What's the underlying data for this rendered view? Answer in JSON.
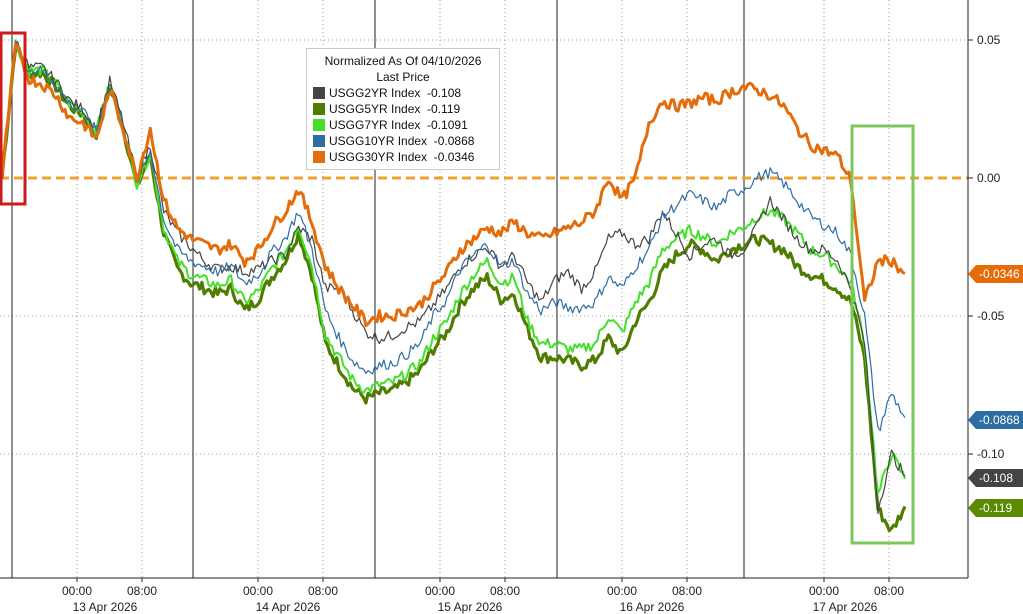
{
  "chart_data": {
    "type": "line",
    "ylim": [
      -0.135,
      0.062
    ],
    "yticks": [
      0.05,
      0.0,
      -0.05,
      -0.1
    ],
    "ytick_labels": [
      "0.05",
      "0.00",
      "-0.05",
      "-0.10"
    ],
    "x_tick_labels": [
      "00:00",
      "08:00",
      "00:00",
      "08:00",
      "00:00",
      "08:00",
      "00:00",
      "08:00",
      "00:00",
      "08:00"
    ],
    "date_labels": [
      "13 Apr 2026",
      "14 Apr 2026",
      "15 Apr 2026",
      "16 Apr 2026",
      "17 Apr 2026"
    ],
    "zero_line_value": 0.0,
    "grid": true,
    "legend": {
      "position": "top-center",
      "title_line1": "Normalized As Of 04/10/2026",
      "title_line2": "Last Price",
      "entries": [
        {
          "name": "USGG2YR Index",
          "value": "-0.108"
        },
        {
          "name": "USGG5YR Index",
          "value": "-0.119"
        },
        {
          "name": "USGG7YR Index",
          "value": "-0.1091"
        },
        {
          "name": "USGG10YR Index",
          "value": "-0.0868"
        },
        {
          "name": "USGG30YR Index",
          "value": "-0.0346"
        }
      ]
    },
    "value_tags": [
      {
        "label": "-0.0346",
        "value": -0.0346,
        "color": "#e46c0a"
      },
      {
        "label": "-0.0868",
        "value": -0.0868,
        "color": "#2e6ca4"
      },
      {
        "label": "-0.108",
        "value": -0.108,
        "color": "#444444"
      },
      {
        "label": "-0.119",
        "value": -0.119,
        "color": "#5a8a00"
      }
    ],
    "series": [
      {
        "name": "USGG2YR Index",
        "color": "#444444",
        "values": [
          0.0,
          0.05,
          0.04,
          0.04,
          0.035,
          0.028,
          0.025,
          0.018,
          0.035,
          0.02,
          0.0,
          0.012,
          -0.012,
          -0.02,
          -0.025,
          -0.03,
          -0.033,
          -0.032,
          -0.034,
          -0.033,
          -0.03,
          -0.028,
          -0.018,
          -0.022,
          -0.04,
          -0.04,
          -0.048,
          -0.056,
          -0.058,
          -0.057,
          -0.054,
          -0.052,
          -0.046,
          -0.04,
          -0.032,
          -0.028,
          -0.025,
          -0.032,
          -0.028,
          -0.038,
          -0.045,
          -0.037,
          -0.034,
          -0.04,
          -0.034,
          -0.022,
          -0.02,
          -0.024,
          -0.022,
          -0.012,
          -0.02,
          -0.028,
          -0.024,
          -0.022,
          -0.028,
          -0.026,
          -0.018,
          -0.008,
          -0.015,
          -0.022,
          -0.026,
          -0.026,
          -0.03,
          -0.04,
          -0.06,
          -0.12,
          -0.1,
          -0.108
        ]
      },
      {
        "name": "USGG5YR Index",
        "color": "#4f7d00",
        "values": [
          0.0,
          0.048,
          0.038,
          0.038,
          0.033,
          0.026,
          0.023,
          0.016,
          0.033,
          0.018,
          -0.003,
          0.008,
          -0.02,
          -0.033,
          -0.038,
          -0.04,
          -0.042,
          -0.04,
          -0.048,
          -0.044,
          -0.036,
          -0.03,
          -0.02,
          -0.035,
          -0.06,
          -0.068,
          -0.076,
          -0.08,
          -0.078,
          -0.077,
          -0.074,
          -0.07,
          -0.062,
          -0.056,
          -0.046,
          -0.04,
          -0.036,
          -0.044,
          -0.042,
          -0.055,
          -0.065,
          -0.065,
          -0.066,
          -0.068,
          -0.066,
          -0.058,
          -0.064,
          -0.052,
          -0.045,
          -0.034,
          -0.028,
          -0.024,
          -0.026,
          -0.03,
          -0.026,
          -0.024,
          -0.022,
          -0.024,
          -0.026,
          -0.032,
          -0.035,
          -0.037,
          -0.04,
          -0.045,
          -0.065,
          -0.12,
          -0.128,
          -0.119
        ]
      },
      {
        "name": "USGG7YR Index",
        "color": "#44e02a",
        "values": [
          0.0,
          0.049,
          0.039,
          0.039,
          0.034,
          0.027,
          0.024,
          0.017,
          0.034,
          0.019,
          -0.002,
          0.009,
          -0.018,
          -0.03,
          -0.035,
          -0.037,
          -0.039,
          -0.037,
          -0.045,
          -0.041,
          -0.033,
          -0.027,
          -0.017,
          -0.032,
          -0.057,
          -0.065,
          -0.073,
          -0.077,
          -0.075,
          -0.074,
          -0.071,
          -0.067,
          -0.058,
          -0.052,
          -0.042,
          -0.035,
          -0.03,
          -0.038,
          -0.036,
          -0.052,
          -0.06,
          -0.06,
          -0.062,
          -0.062,
          -0.06,
          -0.05,
          -0.056,
          -0.045,
          -0.038,
          -0.026,
          -0.022,
          -0.019,
          -0.021,
          -0.024,
          -0.02,
          -0.018,
          -0.014,
          -0.012,
          -0.015,
          -0.02,
          -0.026,
          -0.028,
          -0.032,
          -0.038,
          -0.06,
          -0.115,
          -0.1,
          -0.109
        ]
      },
      {
        "name": "USGG10YR Index",
        "color": "#2e6ca4",
        "values": [
          0.0,
          0.049,
          0.039,
          0.039,
          0.034,
          0.027,
          0.024,
          0.017,
          0.034,
          0.019,
          -0.002,
          0.01,
          -0.015,
          -0.026,
          -0.03,
          -0.032,
          -0.034,
          -0.032,
          -0.038,
          -0.035,
          -0.027,
          -0.022,
          -0.012,
          -0.026,
          -0.048,
          -0.058,
          -0.066,
          -0.07,
          -0.068,
          -0.067,
          -0.064,
          -0.06,
          -0.05,
          -0.044,
          -0.033,
          -0.028,
          -0.024,
          -0.032,
          -0.03,
          -0.042,
          -0.048,
          -0.045,
          -0.047,
          -0.047,
          -0.045,
          -0.036,
          -0.04,
          -0.032,
          -0.026,
          -0.014,
          -0.01,
          -0.006,
          -0.008,
          -0.011,
          -0.006,
          -0.004,
          0.0,
          0.002,
          -0.002,
          -0.008,
          -0.014,
          -0.017,
          -0.02,
          -0.028,
          -0.05,
          -0.092,
          -0.078,
          -0.0868
        ]
      },
      {
        "name": "USGG30YR Index",
        "color": "#e46c0a",
        "values": [
          0.0,
          0.048,
          0.036,
          0.034,
          0.03,
          0.022,
          0.02,
          0.014,
          0.032,
          0.018,
          0.0,
          0.018,
          -0.008,
          -0.018,
          -0.022,
          -0.024,
          -0.026,
          -0.024,
          -0.03,
          -0.026,
          -0.018,
          -0.012,
          -0.004,
          -0.016,
          -0.032,
          -0.04,
          -0.046,
          -0.052,
          -0.05,
          -0.05,
          -0.048,
          -0.046,
          -0.04,
          -0.034,
          -0.026,
          -0.022,
          -0.018,
          -0.02,
          -0.016,
          -0.02,
          -0.022,
          -0.02,
          -0.018,
          -0.016,
          -0.012,
          0.0,
          -0.008,
          0.0,
          0.02,
          0.028,
          0.026,
          0.027,
          0.029,
          0.028,
          0.031,
          0.033,
          0.032,
          0.03,
          0.026,
          0.018,
          0.012,
          0.01,
          0.008,
          -0.001,
          -0.045,
          -0.03,
          -0.03,
          -0.0346
        ]
      }
    ]
  },
  "highlights": [
    {
      "name": "highlight-box-start",
      "color": "#cc1a1a"
    },
    {
      "name": "highlight-box-end",
      "color": "#7cc75c"
    }
  ]
}
